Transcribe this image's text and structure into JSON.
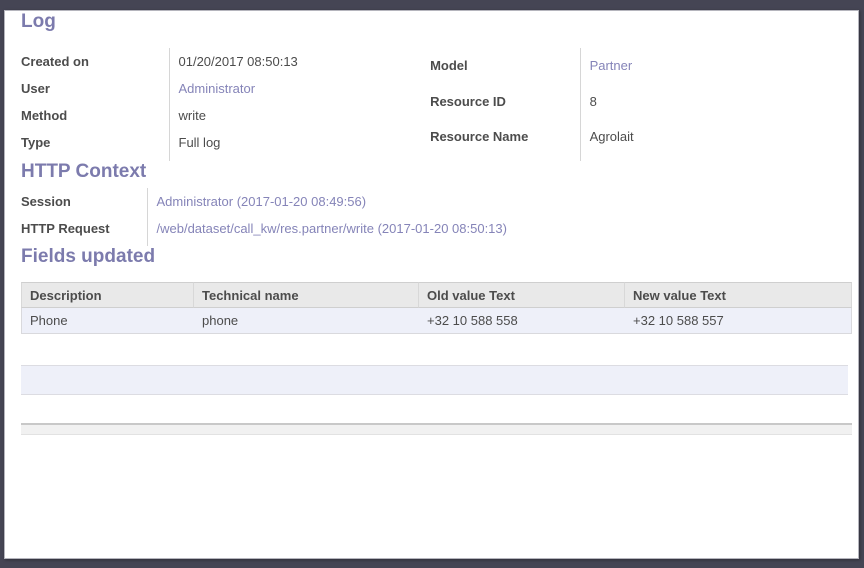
{
  "colors": {
    "accent": "#7c7bad",
    "link": "#8584b8",
    "table_header_bg": "#e9e9e9",
    "table_row_bg": "#eef0f9",
    "text": "#4c4c4c"
  },
  "log": {
    "title": "Log",
    "left": [
      {
        "label": "Created on",
        "value": "01/20/2017 08:50:13"
      },
      {
        "label": "User",
        "value": "Administrator"
      },
      {
        "label": "Method",
        "value": "write"
      },
      {
        "label": "Type",
        "value": "Full log"
      }
    ],
    "right": [
      {
        "label": "Model",
        "value": "Partner"
      },
      {
        "label": "Resource ID",
        "value": "8"
      },
      {
        "label": "Resource Name",
        "value": "Agrolait"
      }
    ]
  },
  "http": {
    "title": "HTTP Context",
    "rows": [
      {
        "label": "Session",
        "value": "Administrator (2017-01-20 08:49:56)"
      },
      {
        "label": "HTTP Request",
        "value": "/web/dataset/call_kw/res.partner/write (2017-01-20 08:50:13)"
      }
    ]
  },
  "fields_updated": {
    "title": "Fields updated",
    "columns": [
      "Description",
      "Technical name",
      "Old value Text",
      "New value Text"
    ],
    "rows": [
      [
        "Phone",
        "phone",
        "+32 10 588 558",
        "+32 10 588 557"
      ]
    ]
  }
}
